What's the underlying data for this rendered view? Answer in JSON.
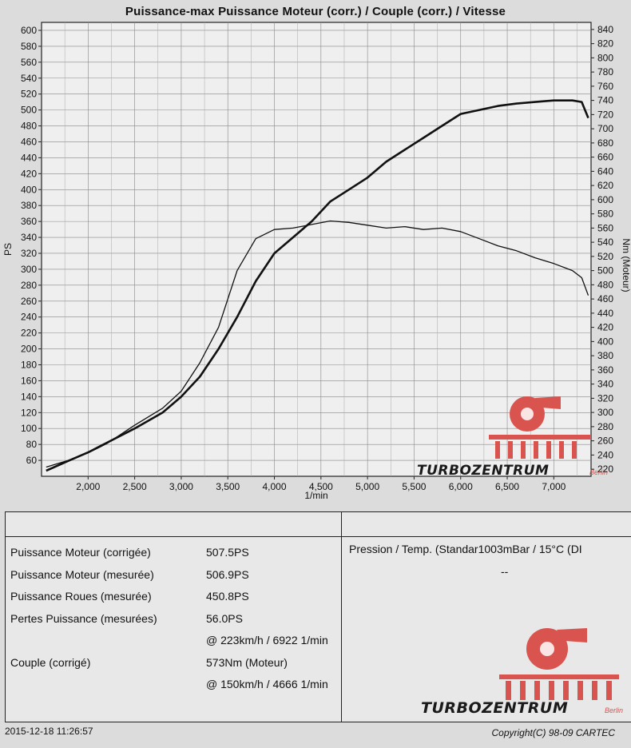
{
  "chart_data": {
    "type": "line",
    "title": "Puissance-max Puissance Moteur (corr.) / Couple (corr.) / Vitesse",
    "xlabel": "1/min",
    "ylabel_left": "PS",
    "ylabel_right": "Nm (Moteur)",
    "xlim": [
      1500,
      7400
    ],
    "ylim_left": [
      40,
      610
    ],
    "ylim_right": [
      210,
      850
    ],
    "x_ticks": [
      2000,
      2500,
      3000,
      3500,
      4000,
      4500,
      5000,
      5500,
      6000,
      6500,
      7000
    ],
    "x_tick_labels": [
      "2,000",
      "2,500",
      "3,000",
      "3,500",
      "4,000",
      "4,500",
      "5,000",
      "5,500",
      "6,000",
      "6,500",
      "7,000"
    ],
    "y_left_ticks": [
      60,
      80,
      100,
      120,
      140,
      160,
      180,
      200,
      220,
      240,
      260,
      280,
      300,
      320,
      340,
      360,
      380,
      400,
      420,
      440,
      460,
      480,
      500,
      520,
      540,
      560,
      580,
      600
    ],
    "y_right_ticks": [
      220,
      240,
      260,
      280,
      300,
      320,
      340,
      360,
      380,
      400,
      420,
      440,
      460,
      480,
      500,
      520,
      540,
      560,
      580,
      600,
      620,
      640,
      660,
      680,
      700,
      720,
      740,
      760,
      780,
      800,
      820,
      840
    ],
    "grid": true,
    "series": [
      {
        "axis": "left",
        "x": [
          1550,
          1800,
          2000,
          2200,
          2500,
          2800,
          3000,
          3200,
          3400,
          3600,
          3800,
          4000,
          4200,
          4400,
          4600,
          4800,
          5000,
          5200,
          5400,
          5600,
          5800,
          6000,
          6200,
          6400,
          6600,
          6800,
          7000,
          7200,
          7300,
          7370
        ],
        "y": [
          47,
          60,
          70,
          82,
          100,
          120,
          140,
          165,
          200,
          240,
          285,
          320,
          340,
          360,
          385,
          400,
          415,
          435,
          450,
          465,
          480,
          495,
          500,
          505,
          508,
          510,
          512,
          512,
          510,
          490
        ]
      },
      {
        "axis": "right",
        "x": [
          1550,
          1800,
          2000,
          2200,
          2500,
          2800,
          3000,
          3200,
          3400,
          3600,
          3800,
          4000,
          4200,
          4400,
          4600,
          4800,
          5000,
          5200,
          5400,
          5600,
          5800,
          6000,
          6200,
          6400,
          6600,
          6800,
          7000,
          7200,
          7300,
          7370
        ],
        "y": [
          223,
          233,
          243,
          256,
          282,
          306,
          330,
          370,
          420,
          500,
          545,
          558,
          560,
          565,
          570,
          568,
          564,
          560,
          562,
          558,
          560,
          555,
          545,
          535,
          528,
          518,
          510,
          500,
          490,
          465
        ]
      }
    ]
  },
  "results": {
    "rows": [
      {
        "label": "Puissance Moteur (corrigée)",
        "value": "507.5PS"
      },
      {
        "label": "Puissance Moteur (mesurée)",
        "value": "506.9PS"
      },
      {
        "label": "Puissance Roues (mesurée)",
        "value": "450.8PS"
      },
      {
        "label": "Pertes Puissance (mesurées)",
        "value": "56.0PS"
      },
      {
        "label": "",
        "value": "@ 223km/h / 6922 1/min"
      },
      {
        "label": "Couple (corrigé)",
        "value": "573Nm (Moteur)"
      },
      {
        "label": "",
        "value": "@ 150km/h / 4666 1/min"
      }
    ],
    "pressure": "Pression / Temp. (Standar1003mBar / 15°C    (DI",
    "pressure_dash": "--"
  },
  "footer": {
    "timestamp": "2015-12-18 11:26:57",
    "copyright": "Copyright(C) 98-09 CARTEC"
  },
  "watermark": {
    "text": "TURBOZENTRUM",
    "sub": "Berlin",
    "color": "#d9544f"
  }
}
